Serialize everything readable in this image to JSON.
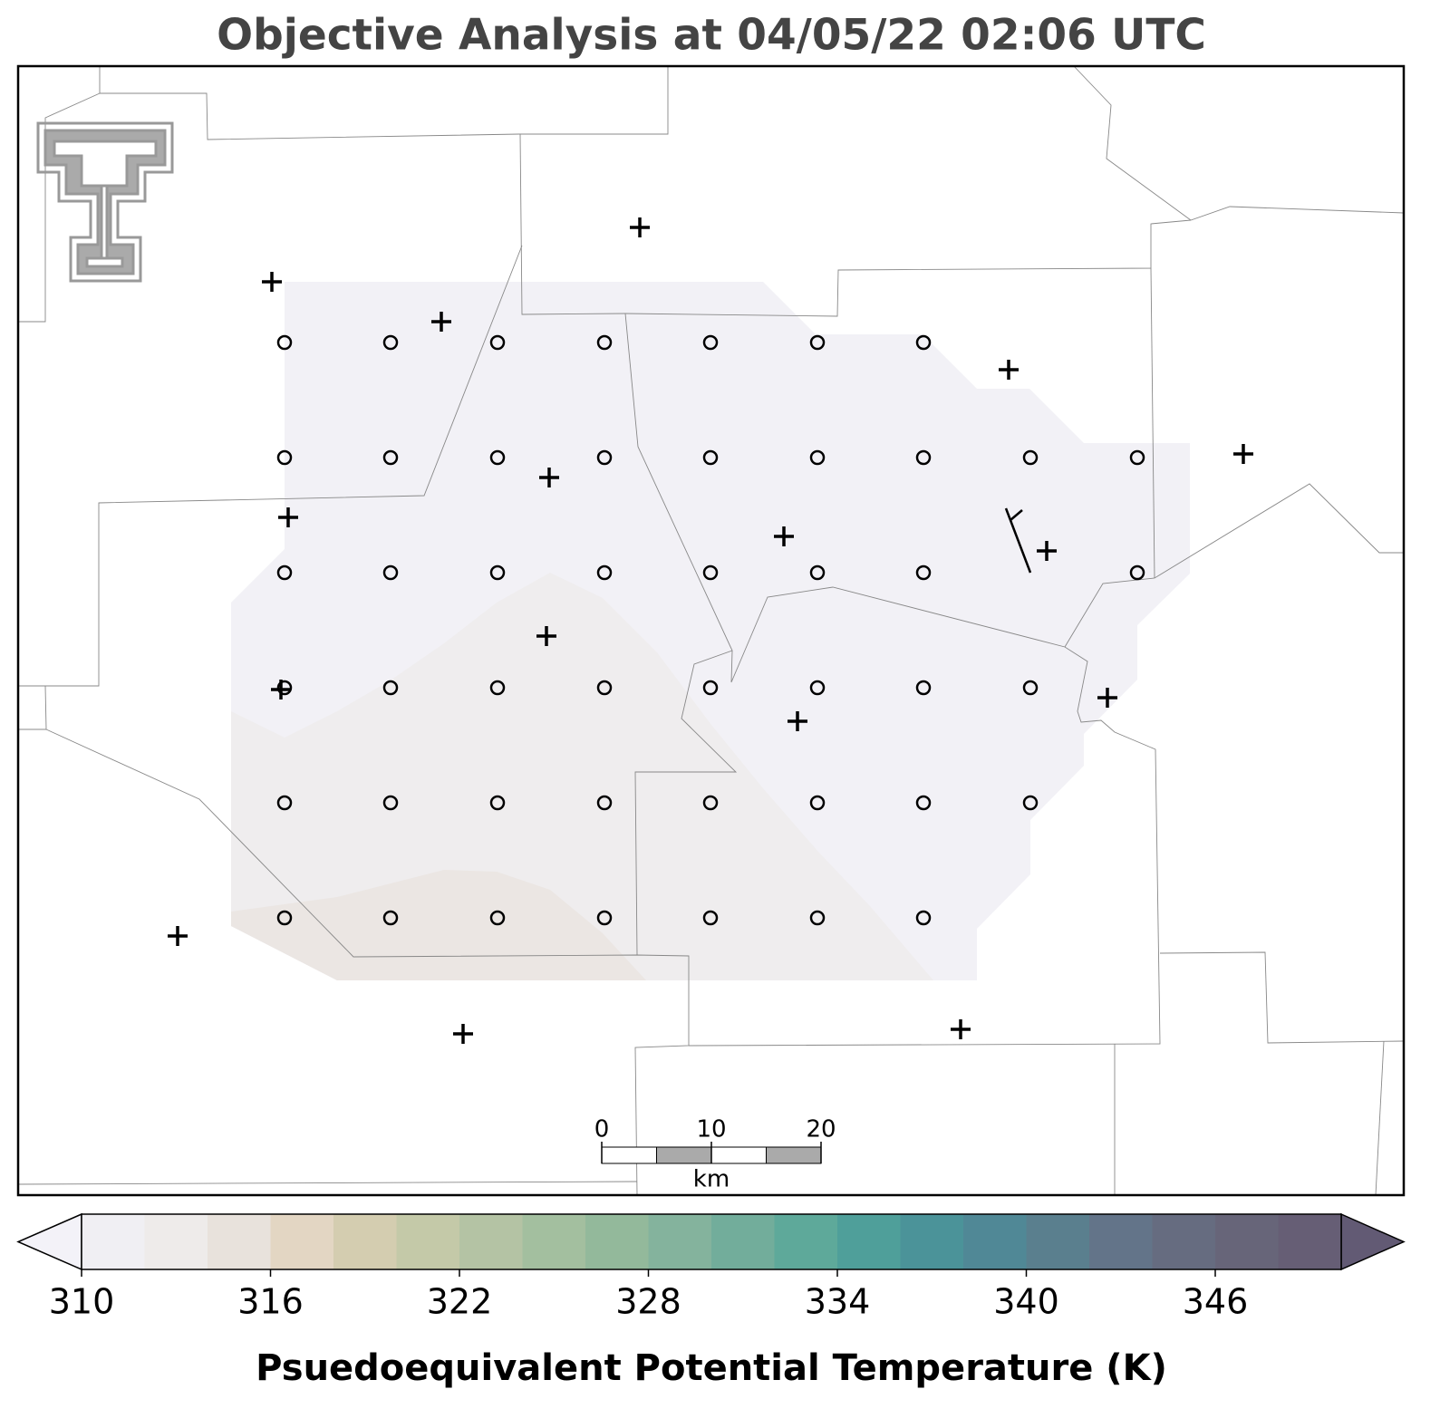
{
  "chart_data": {
    "type": "contour-map",
    "title": "Objective Analysis at 04/05/22 02:06 UTC",
    "colorbar": {
      "label": "Psuedoequivalent Potential Temperature (K)",
      "lim": [
        310,
        350
      ],
      "ticks": [
        310,
        316,
        322,
        328,
        334,
        340,
        346
      ],
      "levels": [
        310,
        312,
        314,
        316,
        318,
        320,
        322,
        324,
        326,
        328,
        330,
        332,
        334,
        336,
        338,
        340,
        342,
        344,
        346,
        348,
        350
      ],
      "colors": [
        "#f0eff3",
        "#eeebea",
        "#e8e2dc",
        "#e3d6c3",
        "#d4cdb0",
        "#c4c9a8",
        "#b4c3a4",
        "#a3bf9f",
        "#93b99b",
        "#84b39d",
        "#72ad9b",
        "#5ea99a",
        "#4f9f9a",
        "#4b9399",
        "#508896",
        "#5a7f8e",
        "#637489",
        "#666c80",
        "#676579",
        "#665e75"
      ],
      "under_color": "#f3f2f8",
      "over_color": "#625a74"
    },
    "scale_bar": {
      "ticks": [
        0,
        10,
        20
      ],
      "lim": [
        0,
        20
      ],
      "unit": "km"
    }
  }
}
